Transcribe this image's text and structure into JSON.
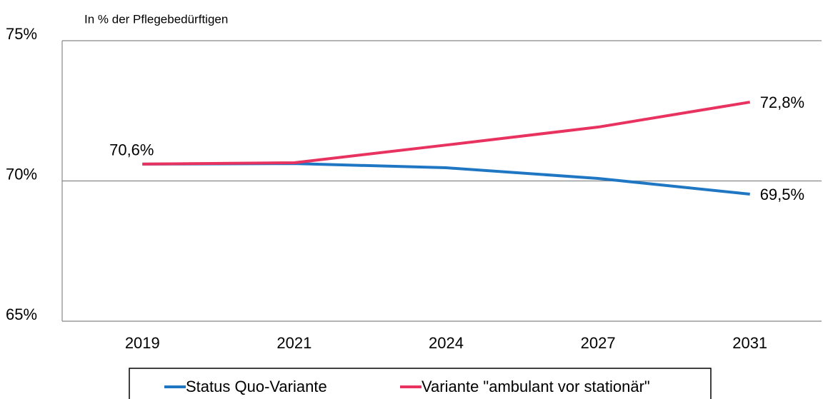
{
  "chart_data": {
    "type": "line",
    "ylabel": "In % der Pflegebedürftigen",
    "categories": [
      "2019",
      "2021",
      "2024",
      "2027",
      "2031"
    ],
    "series": [
      {
        "name": "Status Quo-Variante",
        "color": "#1f77c4",
        "values": [
          70.6,
          70.62,
          70.47,
          70.09,
          69.53
        ],
        "value_labels": [
          null,
          null,
          null,
          null,
          "69,5%"
        ]
      },
      {
        "name": "Variante \"ambulant vor stationär\"",
        "color": "#e8325f",
        "values": [
          70.6,
          70.65,
          71.28,
          71.92,
          72.81
        ],
        "value_labels": [
          "70,6%",
          null,
          null,
          null,
          "72,8%"
        ]
      }
    ],
    "ylim": [
      65,
      75
    ],
    "yticks": [
      {
        "value": 65,
        "label": "65%"
      },
      {
        "value": 70,
        "label": "70%"
      },
      {
        "value": 75,
        "label": "75%"
      }
    ],
    "grid": true,
    "legend": "bottom"
  }
}
